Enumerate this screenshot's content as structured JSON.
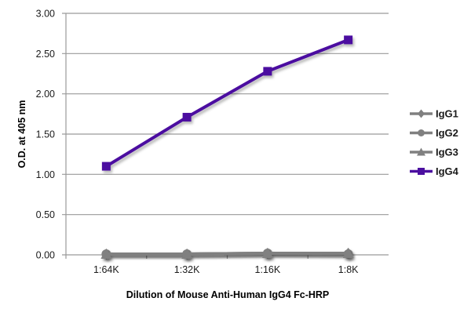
{
  "chart_data": {
    "type": "line",
    "title": "",
    "xlabel": "Dilution of Mouse Anti-Human IgG4 Fc-HRP",
    "ylabel": "O.D. at 405 nm",
    "categories": [
      "1:64K",
      "1:32K",
      "1:16K",
      "1:8K"
    ],
    "ylim": [
      0,
      3.0
    ],
    "yticks": [
      "0.00",
      "0.50",
      "1.00",
      "1.50",
      "2.00",
      "2.50",
      "3.00"
    ],
    "grid": true,
    "legend_position": "right",
    "series": [
      {
        "name": "IgG1",
        "marker": "diamond",
        "color": "#808080",
        "values": [
          0.01,
          0.01,
          0.02,
          0.02
        ]
      },
      {
        "name": "IgG2",
        "marker": "circle",
        "color": "#808080",
        "values": [
          0.01,
          0.01,
          0.02,
          0.01
        ]
      },
      {
        "name": "IgG3",
        "marker": "triangle",
        "color": "#808080",
        "values": [
          0.01,
          0.01,
          0.02,
          0.02
        ]
      },
      {
        "name": "IgG4",
        "marker": "square",
        "color": "#4B0FA0",
        "values": [
          1.1,
          1.71,
          2.28,
          2.67
        ]
      }
    ]
  }
}
